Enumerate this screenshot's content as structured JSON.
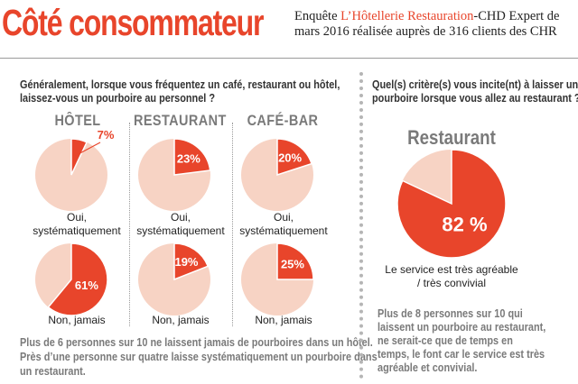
{
  "header": {
    "title": "Côté consommateur",
    "source_prefix": "Enquête ",
    "source_highlight": "L’Hôtellerie Restauration",
    "source_suffix": "-CHD Expert  de mars 2016 réalisée auprès de 316 clients des CHR"
  },
  "left": {
    "question_line1": "Généralement, lorsque vous fréquentez un café, restaurant ou hôtel,",
    "question_line2": "laissez-vous un pourboire au personnel ?",
    "columns": [
      "HÔTEL",
      "RESTAURANT",
      "CAFÉ-BAR"
    ],
    "row_labels": {
      "systematic_line1": "Oui,",
      "systematic_line2": "systématiquement",
      "never": "Non, jamais"
    },
    "note_lines": [
      "Plus de 6 personnes sur 10  ne laissent jamais de pourboires dans un hôtel.",
      "Près d’une personne sur quatre laisse systématiquement un pourboire dans",
      "un restaurant."
    ]
  },
  "right": {
    "question_line1": "Quel(s) critère(s) vous incite(nt) à laisser un",
    "question_line2": "pourboire lorsque vous allez au restaurant ?",
    "chart_title": "Restaurant",
    "caption_line1": "Le service est très agréable",
    "caption_line2": "/ très convivial",
    "note_lines": [
      "Plus de 8 personnes sur 10 qui",
      "laissent un pourboire au restaurant,",
      "ne serait-ce que de temps en",
      "temps, le font car le service est très",
      "agréable et convivial."
    ]
  },
  "colors": {
    "accent": "#e8452b",
    "pie_bg": "#f7d3c4",
    "separator": "#9a9a9a"
  },
  "chart_data": [
    {
      "type": "pie",
      "title": "HÔTEL",
      "label": "Oui, systématiquement",
      "value_label": "7%",
      "values": [
        7,
        93
      ]
    },
    {
      "type": "pie",
      "title": "RESTAURANT",
      "label": "Oui, systématiquement",
      "value_label": "23%",
      "values": [
        23,
        77
      ]
    },
    {
      "type": "pie",
      "title": "CAFÉ-BAR",
      "label": "Oui, systématiquement",
      "value_label": "20%",
      "values": [
        20,
        80
      ]
    },
    {
      "type": "pie",
      "title": "HÔTEL",
      "label": "Non, jamais",
      "value_label": "61%",
      "values": [
        61,
        39
      ]
    },
    {
      "type": "pie",
      "title": "RESTAURANT",
      "label": "Non, jamais",
      "value_label": "19%",
      "values": [
        19,
        81
      ]
    },
    {
      "type": "pie",
      "title": "CAFÉ-BAR",
      "label": "Non, jamais",
      "value_label": "25%",
      "values": [
        25,
        75
      ]
    },
    {
      "type": "pie",
      "title": "Restaurant",
      "label": "Le service est très agréable / très convivial",
      "value_label": "82 %",
      "values": [
        82,
        18
      ]
    }
  ]
}
